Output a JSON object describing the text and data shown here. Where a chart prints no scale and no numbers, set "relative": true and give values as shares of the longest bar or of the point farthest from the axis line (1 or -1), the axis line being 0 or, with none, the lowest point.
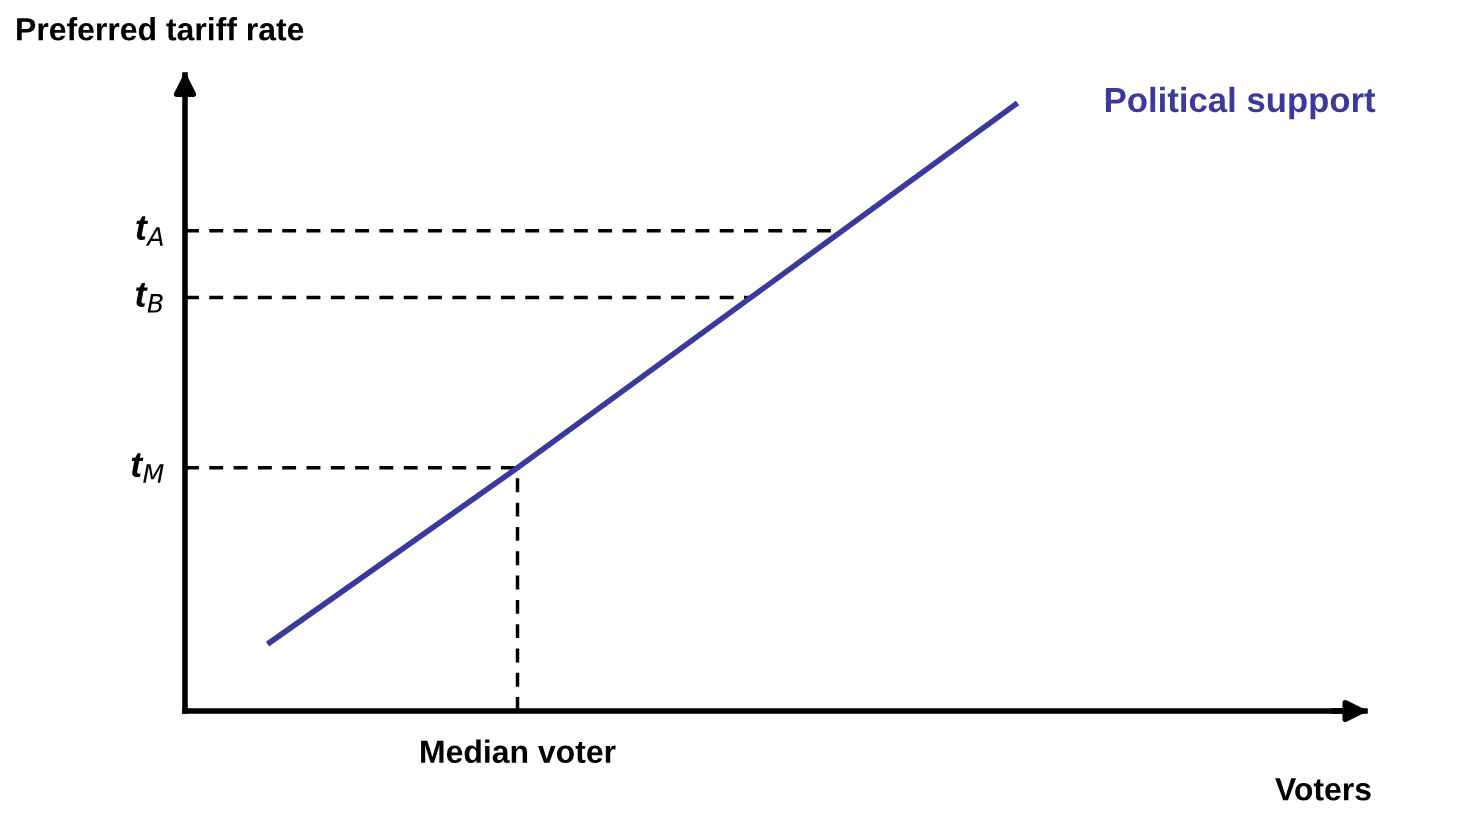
{
  "chart_data": {
    "type": "line",
    "relative": true,
    "ylabel": "Preferred tariff rate",
    "xlabel": "Voters",
    "categories": [
      null,
      null,
      null,
      null
    ],
    "series": [
      {
        "name": "Political support",
        "color": "#3a3a9c",
        "values": [
          0.11,
          0.4,
          0.7,
          1.0
        ]
      }
    ],
    "ref_lines": [
      {
        "axis": "y",
        "value": 0.79,
        "label": "t$_{A}$",
        "color": "#000000",
        "line_style": "dashed"
      },
      {
        "axis": "y",
        "value": 0.68,
        "label": "t$_{B}$",
        "color": "#000000",
        "line_style": "dashed"
      },
      {
        "axis": "y",
        "value": 0.4,
        "label": "t$_{M}$",
        "color": "#000000",
        "line_style": "dashed"
      }
    ],
    "annotations": [
      {
        "text": "Median voter",
        "y": 0.4
      }
    ],
    "marker": "none",
    "line_style": "solid"
  }
}
